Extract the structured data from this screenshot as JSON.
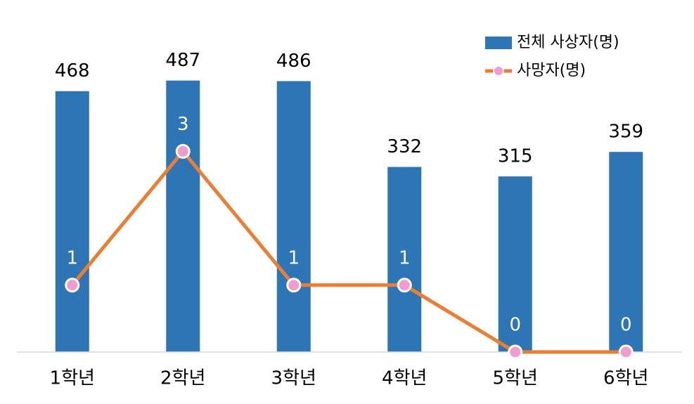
{
  "chart_data": {
    "type": "bar-line",
    "categories": [
      "1학년",
      "2학년",
      "3학년",
      "4학년",
      "5학년",
      "6학년"
    ],
    "series": [
      {
        "name": "전체 사상자(명)",
        "type": "bar",
        "color": "#2e75b6",
        "values": [
          468,
          487,
          486,
          332,
          315,
          359
        ]
      },
      {
        "name": "사망자(명)",
        "type": "line",
        "axis": "y2",
        "color": "#ed7d31",
        "marker_color": "#f29bd0",
        "values": [
          1,
          3,
          1,
          1,
          0,
          0
        ]
      }
    ],
    "ylim": [
      0,
      600
    ],
    "y2lim": [
      0,
      5
    ],
    "legend": "top-right"
  }
}
